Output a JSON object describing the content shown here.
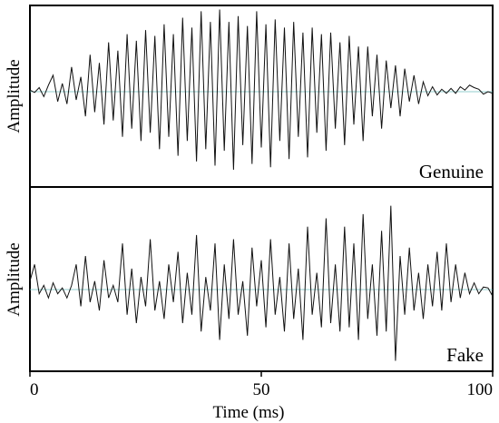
{
  "chart_data": {
    "type": "line",
    "xlabel": "Time (ms)",
    "x_ticks": [
      0,
      50,
      100
    ],
    "xlim": [
      0,
      100
    ],
    "panels": [
      {
        "ylabel": "Amplitude",
        "label": "Genuine",
        "ylim": [
          -1.05,
          1.05
        ],
        "series": {
          "x": [
            0,
            1,
            2,
            3,
            4,
            5,
            6,
            7,
            8,
            9,
            10,
            11,
            12,
            13,
            14,
            15,
            16,
            17,
            18,
            19,
            20,
            21,
            22,
            23,
            24,
            25,
            26,
            27,
            28,
            29,
            30,
            31,
            32,
            33,
            34,
            35,
            36,
            37,
            38,
            39,
            40,
            41,
            42,
            43,
            44,
            45,
            46,
            47,
            48,
            49,
            50,
            51,
            52,
            53,
            54,
            55,
            56,
            57,
            58,
            59,
            60,
            61,
            62,
            63,
            64,
            65,
            66,
            67,
            68,
            69,
            70,
            71,
            72,
            73,
            74,
            75,
            76,
            77,
            78,
            79,
            80,
            81,
            82,
            83,
            84,
            85,
            86,
            87,
            88,
            89,
            90,
            91,
            92,
            93,
            94,
            95,
            96,
            97,
            98,
            99,
            100
          ],
          "values": [
            0.02,
            -0.01,
            0.05,
            -0.06,
            0.08,
            0.2,
            -0.12,
            0.1,
            -0.15,
            0.3,
            -0.1,
            0.18,
            -0.3,
            0.45,
            -0.25,
            0.35,
            -0.4,
            0.6,
            -0.35,
            0.5,
            -0.55,
            0.7,
            -0.45,
            0.62,
            -0.6,
            0.75,
            -0.5,
            0.68,
            -0.7,
            0.82,
            -0.55,
            0.7,
            -0.78,
            0.9,
            -0.6,
            0.78,
            -0.85,
            0.98,
            -0.7,
            0.85,
            -0.9,
            1.0,
            -0.72,
            0.85,
            -0.95,
            0.92,
            -0.65,
            0.8,
            -0.88,
            0.98,
            -0.68,
            0.82,
            -0.92,
            0.88,
            -0.6,
            0.78,
            -0.82,
            0.85,
            -0.55,
            0.72,
            -0.8,
            0.78,
            -0.5,
            0.7,
            -0.72,
            0.72,
            -0.45,
            0.6,
            -0.65,
            0.68,
            -0.4,
            0.55,
            -0.6,
            0.55,
            -0.3,
            0.45,
            -0.45,
            0.38,
            -0.2,
            0.32,
            -0.3,
            0.28,
            -0.12,
            0.2,
            -0.15,
            0.12,
            -0.05,
            0.06,
            -0.04,
            0.03,
            -0.02,
            0.04,
            -0.02,
            0.06,
            0.02,
            0.08,
            0.05,
            0.03,
            -0.03,
            0.0,
            -0.02
          ]
        }
      },
      {
        "ylabel": "Amplitude",
        "label": "Fake",
        "ylim": [
          -1.05,
          1.05
        ],
        "series": {
          "x": [
            0,
            1,
            2,
            3,
            4,
            5,
            6,
            7,
            8,
            9,
            10,
            11,
            12,
            13,
            14,
            15,
            16,
            17,
            18,
            19,
            20,
            21,
            22,
            23,
            24,
            25,
            26,
            27,
            28,
            29,
            30,
            31,
            32,
            33,
            34,
            35,
            36,
            37,
            38,
            39,
            40,
            41,
            42,
            43,
            44,
            45,
            46,
            47,
            48,
            49,
            50,
            51,
            52,
            53,
            54,
            55,
            56,
            57,
            58,
            59,
            60,
            61,
            62,
            63,
            64,
            65,
            66,
            67,
            68,
            69,
            70,
            71,
            72,
            73,
            74,
            75,
            76,
            77,
            78,
            79,
            80,
            81,
            82,
            83,
            84,
            85,
            86,
            87,
            88,
            89,
            90,
            91,
            92,
            93,
            94,
            95,
            96,
            97,
            98,
            99,
            100
          ],
          "values": [
            0.1,
            0.3,
            -0.05,
            0.05,
            -0.1,
            0.08,
            -0.05,
            0.02,
            -0.1,
            0.05,
            0.3,
            -0.2,
            0.4,
            -0.15,
            0.1,
            -0.25,
            0.35,
            -0.1,
            0.05,
            -0.15,
            0.55,
            -0.3,
            0.25,
            -0.4,
            0.15,
            -0.2,
            0.6,
            -0.25,
            0.1,
            -0.35,
            0.3,
            -0.15,
            0.45,
            -0.4,
            0.2,
            -0.3,
            0.65,
            -0.5,
            0.15,
            -0.25,
            0.55,
            -0.6,
            0.3,
            -0.35,
            0.6,
            -0.3,
            0.1,
            -0.55,
            0.5,
            -0.2,
            0.35,
            -0.45,
            0.6,
            -0.3,
            0.15,
            -0.5,
            0.55,
            -0.35,
            0.25,
            -0.6,
            0.75,
            -0.3,
            0.2,
            -0.45,
            0.85,
            -0.4,
            0.3,
            -0.5,
            0.75,
            -0.45,
            0.55,
            -0.6,
            0.9,
            -0.35,
            0.3,
            -0.55,
            0.7,
            -0.5,
            1.0,
            -0.85,
            0.4,
            -0.3,
            0.5,
            -0.25,
            0.2,
            -0.35,
            0.3,
            -0.2,
            0.45,
            -0.25,
            0.55,
            -0.15,
            0.3,
            -0.1,
            0.2,
            -0.05,
            0.08,
            -0.05,
            0.03,
            0.02,
            -0.08
          ]
        }
      }
    ]
  }
}
